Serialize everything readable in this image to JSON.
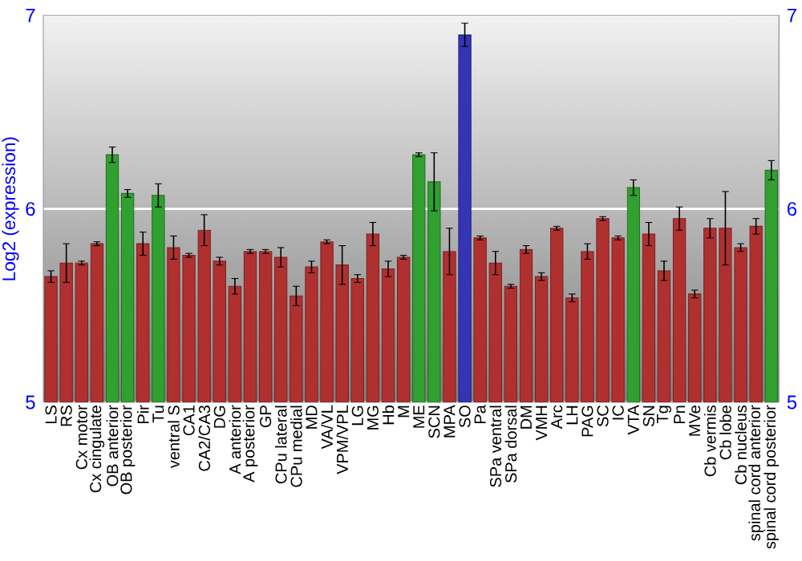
{
  "chart_data": {
    "type": "bar",
    "ylabel": "Log2 (expression)",
    "categories": [
      "LS",
      "RS",
      "Cx motor",
      "Cx cingulate",
      "OB anterior",
      "OB posterior",
      "Pir",
      "Tu",
      "ventral S",
      "CA1",
      "CA2/CA3",
      "DG",
      "A anterior",
      "A posterior",
      "GP",
      "CPu lateral",
      "CPu medial",
      "MD",
      "VA/VL",
      "VPM/VPL",
      "LG",
      "MG",
      "Hb",
      "M",
      "ME",
      "SCN",
      "MPA",
      "SO",
      "Pa",
      "SPa ventral",
      "SPa dorsal",
      "DM",
      "VMH",
      "Arc",
      "LH",
      "PAG",
      "SC",
      "IC",
      "VTA",
      "SN",
      "Tg",
      "Pn",
      "MVe",
      "Cb vermis",
      "Cb lobe",
      "Cb nucleus",
      "spinal cord anterior",
      "spinal cord posterior"
    ],
    "values": [
      5.65,
      5.72,
      5.72,
      5.82,
      6.28,
      6.08,
      5.82,
      6.07,
      5.8,
      5.76,
      5.89,
      5.73,
      5.6,
      5.78,
      5.78,
      5.75,
      5.55,
      5.7,
      5.83,
      5.71,
      5.64,
      5.87,
      5.69,
      5.75,
      6.28,
      6.14,
      5.78,
      6.9,
      5.85,
      5.72,
      5.6,
      5.79,
      5.65,
      5.9,
      5.54,
      5.78,
      5.95,
      5.85,
      6.11,
      5.87,
      5.68,
      5.95,
      5.56,
      5.9,
      5.9,
      5.8,
      5.91,
      6.2
    ],
    "errors": [
      0.03,
      0.1,
      0.01,
      0.01,
      0.04,
      0.02,
      0.06,
      0.06,
      0.06,
      0.01,
      0.08,
      0.02,
      0.04,
      0.01,
      0.01,
      0.05,
      0.05,
      0.03,
      0.01,
      0.1,
      0.02,
      0.06,
      0.04,
      0.01,
      0.01,
      0.15,
      0.12,
      0.06,
      0.01,
      0.06,
      0.01,
      0.02,
      0.02,
      0.01,
      0.02,
      0.04,
      0.01,
      0.01,
      0.04,
      0.06,
      0.05,
      0.06,
      0.02,
      0.05,
      0.19,
      0.02,
      0.04,
      0.05
    ],
    "colors": [
      "#b03030",
      "#b03030",
      "#b03030",
      "#b03030",
      "#30a030",
      "#30a030",
      "#b03030",
      "#30a030",
      "#b03030",
      "#b03030",
      "#b03030",
      "#b03030",
      "#b03030",
      "#b03030",
      "#b03030",
      "#b03030",
      "#b03030",
      "#b03030",
      "#b03030",
      "#b03030",
      "#b03030",
      "#b03030",
      "#b03030",
      "#b03030",
      "#30a030",
      "#30a030",
      "#b03030",
      "#3434b4",
      "#b03030",
      "#b03030",
      "#b03030",
      "#b03030",
      "#b03030",
      "#b03030",
      "#b03030",
      "#b03030",
      "#b03030",
      "#b03030",
      "#30a030",
      "#b03030",
      "#b03030",
      "#b03030",
      "#b03030",
      "#b03030",
      "#b03030",
      "#b03030",
      "#b03030",
      "#30a030"
    ],
    "ylim": [
      5,
      7
    ],
    "yticks": [
      5,
      6,
      7
    ],
    "y2lim": [
      5,
      7
    ],
    "y2ticks": [
      5,
      6,
      7
    ],
    "grid": "y"
  }
}
